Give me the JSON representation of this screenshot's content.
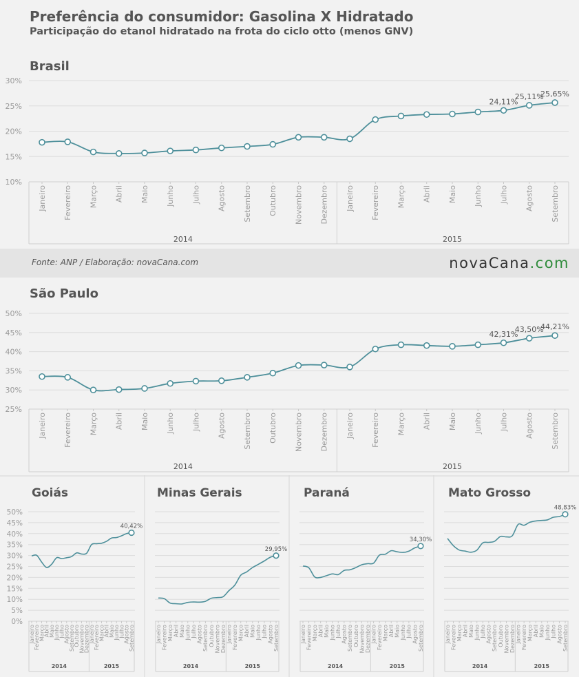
{
  "header": {
    "title": "Preferência do consumidor: Gasolina X Hidratado",
    "subtitle": "Participação do etanol hidratado na frota do ciclo otto (menos GNV)"
  },
  "footer": {
    "source": "Fonte: ANP / Elaboração: novaCana.com",
    "logo_main": "novaCana",
    "logo_suffix": ".com"
  },
  "colors": {
    "line": "#4d8f9a",
    "grid": "#dcdcdc",
    "text": "#555555",
    "axis_text": "#9a9a9a"
  },
  "chart_data": [
    {
      "type": "line",
      "title": "Brasil",
      "months": [
        "Janeiro",
        "Fevereiro",
        "Março",
        "Abril",
        "Maio",
        "Junho",
        "Julho",
        "Agosto",
        "Setembro",
        "Outubro",
        "Novembro",
        "Dezembro",
        "Janeiro",
        "Fevereiro",
        "Março",
        "Abril",
        "Maio",
        "Junho",
        "Julho",
        "Agosto",
        "Setembro"
      ],
      "years": [
        {
          "label": "2014",
          "count": 12
        },
        {
          "label": "2015",
          "count": 9
        }
      ],
      "values": [
        17.8,
        17.9,
        15.9,
        15.6,
        15.7,
        16.1,
        16.3,
        16.7,
        17.0,
        17.4,
        18.8,
        18.8,
        18.5,
        22.3,
        23.0,
        23.3,
        23.4,
        23.8,
        24.11,
        25.11,
        25.65
      ],
      "labels": [
        "",
        "",
        "",
        "",
        "",
        "",
        "",
        "",
        "",
        "",
        "",
        "",
        "",
        "",
        "",
        "",
        "",
        "",
        "24,11%",
        "25,11%",
        "25,65%"
      ],
      "yticks": [
        "10%",
        "15%",
        "20%",
        "25%",
        "30%"
      ],
      "ylim": [
        10,
        30
      ]
    },
    {
      "type": "line",
      "title": "São Paulo",
      "months": [
        "Janeiro",
        "Fevereiro",
        "Março",
        "Abril",
        "Maio",
        "Junho",
        "Julho",
        "Agosto",
        "Setembro",
        "Outubro",
        "Novembro",
        "Dezembro",
        "Janeiro",
        "Fevereiro",
        "Março",
        "Abril",
        "Maio",
        "Junho",
        "Julho",
        "Agosto",
        "Setembro"
      ],
      "years": [
        {
          "label": "2014",
          "count": 12
        },
        {
          "label": "2015",
          "count": 9
        }
      ],
      "values": [
        33.5,
        33.3,
        30.0,
        30.1,
        30.4,
        31.7,
        32.3,
        32.4,
        33.3,
        34.4,
        36.4,
        36.5,
        36.0,
        40.7,
        41.8,
        41.6,
        41.4,
        41.8,
        42.31,
        43.5,
        44.21
      ],
      "labels": [
        "",
        "",
        "",
        "",
        "",
        "",
        "",
        "",
        "",
        "",
        "",
        "",
        "",
        "",
        "",
        "",
        "",
        "",
        "42,31%",
        "43,50%",
        "44,21%"
      ],
      "yticks": [
        "25%",
        "30%",
        "35%",
        "40%",
        "45%",
        "50%"
      ],
      "ylim": [
        25,
        50
      ]
    },
    {
      "type": "line",
      "title": "Goiás",
      "months": [
        "Janeiro",
        "Fevereiro",
        "Março",
        "Abril",
        "Maio",
        "Junho",
        "Julho",
        "Agosto",
        "Setembro",
        "Outubro",
        "Novembro",
        "Dezembro",
        "Janeiro",
        "Fevereiro",
        "Março",
        "Abril",
        "Maio",
        "Junho",
        "Julho",
        "Agosto",
        "Setembro"
      ],
      "years": [
        {
          "label": "2014",
          "count": 12
        },
        {
          "label": "2015",
          "count": 9
        }
      ],
      "values": [
        29.8,
        30.1,
        27.0,
        24.5,
        26.0,
        29.0,
        28.6,
        29.0,
        29.5,
        31.2,
        30.7,
        31.0,
        35.0,
        35.4,
        35.6,
        36.5,
        38.0,
        38.2,
        39.0,
        40.0,
        40.42
      ],
      "labels": [
        "",
        "",
        "",
        "",
        "",
        "",
        "",
        "",
        "",
        "",
        "",
        "",
        "",
        "",
        "",
        "",
        "",
        "",
        "",
        "",
        "40,42%"
      ],
      "yticks": [
        "0%",
        "5%",
        "10%",
        "15%",
        "20%",
        "25%",
        "30%",
        "35%",
        "40%",
        "45%",
        "50%"
      ],
      "ylim": [
        0,
        50
      ]
    },
    {
      "type": "line",
      "title": "Minas Gerais",
      "months": [
        "Janeiro",
        "Fevereiro",
        "Março",
        "Abril",
        "Maio",
        "Junho",
        "Julho",
        "Agosto",
        "Setembro",
        "Outubro",
        "Novembro",
        "Dezembro",
        "Janeiro",
        "Fevereiro",
        "Março",
        "Abril",
        "Maio",
        "Junho",
        "Julho",
        "Agosto",
        "Setembro"
      ],
      "years": [
        {
          "label": "2014",
          "count": 12
        },
        {
          "label": "2015",
          "count": 9
        }
      ],
      "values": [
        10.6,
        10.3,
        8.3,
        8.0,
        7.9,
        8.6,
        8.8,
        8.7,
        9.1,
        10.5,
        10.8,
        11.2,
        14.0,
        16.5,
        21.0,
        22.5,
        24.5,
        26.0,
        27.5,
        29.2,
        29.95
      ],
      "labels": [
        "",
        "",
        "",
        "",
        "",
        "",
        "",
        "",
        "",
        "",
        "",
        "",
        "",
        "",
        "",
        "",
        "",
        "",
        "",
        "",
        "29,95%"
      ],
      "yticks": [],
      "ylim": [
        0,
        50
      ]
    },
    {
      "type": "line",
      "title": "Paraná",
      "months": [
        "Janeiro",
        "Fevereiro",
        "Março",
        "Abril",
        "Maio",
        "Junho",
        "Julho",
        "Agosto",
        "Setembro",
        "Outubro",
        "Novembro",
        "Dezembro",
        "Janeiro",
        "Fevereiro",
        "Março",
        "Abril",
        "Maio",
        "Junho",
        "Julho",
        "Agosto",
        "Setembro"
      ],
      "years": [
        {
          "label": "2014",
          "count": 12
        },
        {
          "label": "2015",
          "count": 9
        }
      ],
      "values": [
        25.2,
        24.4,
        20.2,
        20.0,
        20.8,
        21.6,
        21.3,
        23.2,
        23.5,
        24.5,
        25.8,
        26.3,
        26.5,
        30.2,
        30.6,
        32.2,
        31.7,
        31.4,
        32.0,
        33.5,
        34.3
      ],
      "labels": [
        "",
        "",
        "",
        "",
        "",
        "",
        "",
        "",
        "",
        "",
        "",
        "",
        "",
        "",
        "",
        "",
        "",
        "",
        "",
        "",
        "34,30%"
      ],
      "yticks": [],
      "ylim": [
        0,
        50
      ]
    },
    {
      "type": "line",
      "title": "Mato Grosso",
      "months": [
        "Janeiro",
        "Fevereiro",
        "Março",
        "Abril",
        "Maio",
        "Junho",
        "Julho",
        "Agosto",
        "Setembro",
        "Outubro",
        "Novembro",
        "Dezembro",
        "Janeiro",
        "Fevereiro",
        "Março",
        "Abril",
        "Maio",
        "Junho",
        "Julho",
        "Agosto",
        "Setembro"
      ],
      "years": [
        {
          "label": "2014",
          "count": 12
        },
        {
          "label": "2015",
          "count": 9
        }
      ],
      "values": [
        37.8,
        34.5,
        32.5,
        32.0,
        31.5,
        32.5,
        35.8,
        36.0,
        36.5,
        38.7,
        38.5,
        39.0,
        44.2,
        43.8,
        45.2,
        45.8,
        46.0,
        46.3,
        47.5,
        47.8,
        48.83
      ],
      "labels": [
        "",
        "",
        "",
        "",
        "",
        "",
        "",
        "",
        "",
        "",
        "",
        "",
        "",
        "",
        "",
        "",
        "",
        "",
        "",
        "",
        "48,83%"
      ],
      "yticks": [],
      "ylim": [
        0,
        50
      ]
    }
  ]
}
